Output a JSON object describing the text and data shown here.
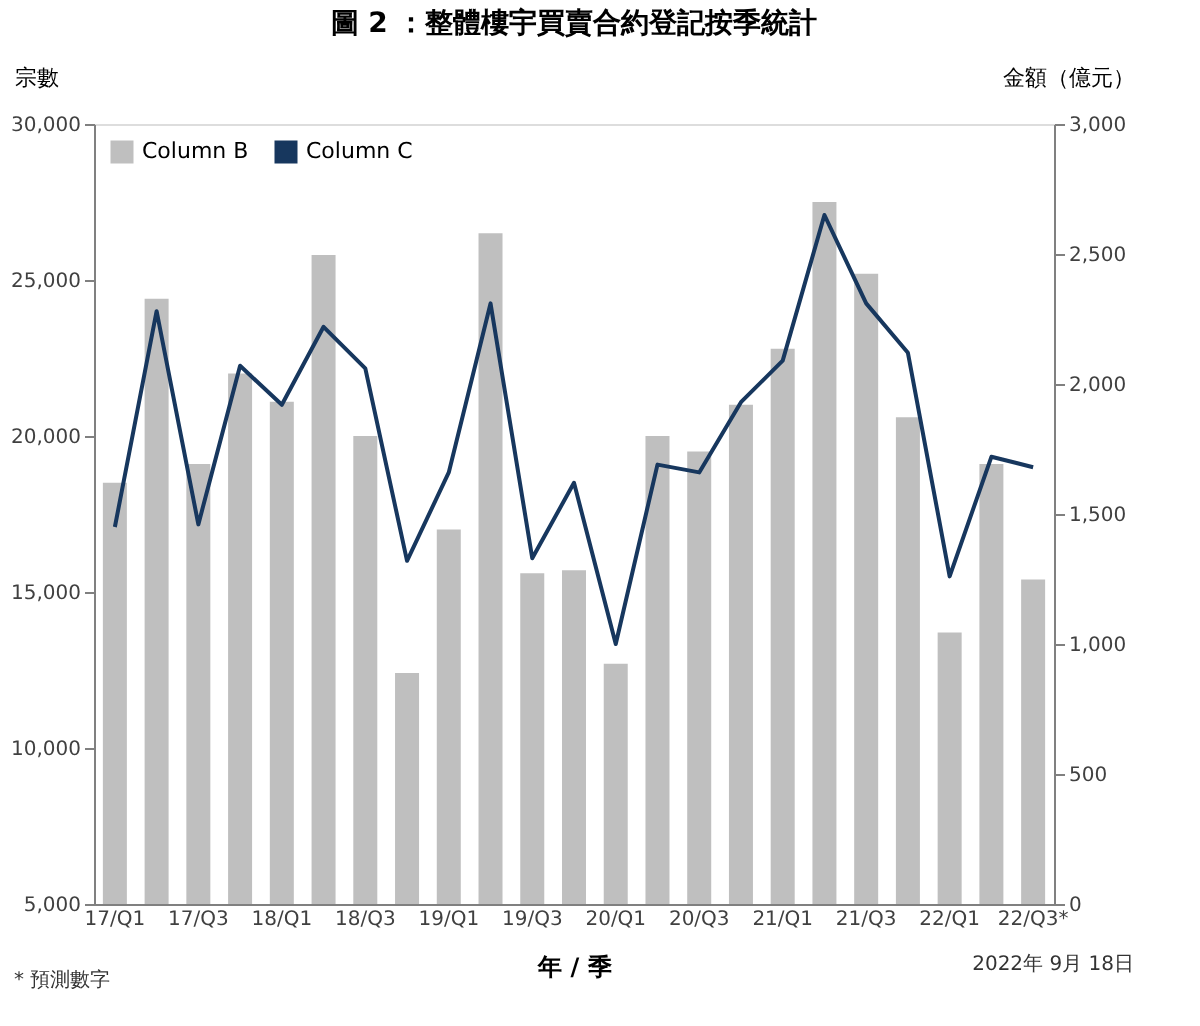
{
  "chart_data": {
    "type": "bar",
    "title": "圖 2 ：整體樓宇買賣合約登記按季統計",
    "xlabel": "年 / 季",
    "ylabel": "宗數",
    "y2label": "金額（億元）",
    "categories": [
      "17/Q1",
      null,
      "17/Q3",
      null,
      "18/Q1",
      null,
      "18/Q3",
      null,
      "19/Q1",
      null,
      "19/Q3",
      null,
      "20/Q1",
      null,
      "20/Q3",
      null,
      "21/Q1",
      null,
      "21/Q3",
      null,
      "22/Q1",
      null,
      "22/Q3*"
    ],
    "series": [
      {
        "name": "Column B",
        "color": "#bfbfbf",
        "values": [
          18500,
          24400,
          19100,
          22000,
          21100,
          25800,
          20000,
          12400,
          17000,
          26500,
          15600,
          15700,
          12700,
          20000,
          19500,
          21000,
          22800,
          27500,
          25200,
          20600,
          13700,
          19100,
          15400
        ]
      },
      {
        "name": "Column C",
        "type": "line",
        "axis": "y2",
        "color": "#17375e",
        "values": [
          1450,
          2280,
          1460,
          2070,
          1920,
          2220,
          2060,
          1320,
          1660,
          2310,
          1330,
          1620,
          1000,
          1690,
          1660,
          1930,
          2090,
          2650,
          2310,
          2120,
          1260,
          1720,
          1680
        ]
      }
    ],
    "ylim": [
      5000,
      30000
    ],
    "yticks": [
      {
        "value": 5000,
        "label": "5,000"
      },
      {
        "value": 10000,
        "label": "10,000"
      },
      {
        "value": 15000,
        "label": "15,000"
      },
      {
        "value": 20000,
        "label": "20,000"
      },
      {
        "value": 25000,
        "label": "25,000"
      },
      {
        "value": 30000,
        "label": "30,000"
      }
    ],
    "y2lim": [
      0,
      3000
    ],
    "y2ticks": [
      0,
      500,
      {
        "value": 1000,
        "label": "1,000"
      },
      {
        "value": 1500,
        "label": "1,500"
      },
      {
        "value": 2000,
        "label": "2,000"
      },
      {
        "value": 2500,
        "label": "2,500"
      },
      {
        "value": 3000,
        "label": "3,000"
      }
    ],
    "grid": false,
    "legend": "top left",
    "annotations": [
      "* 預測數字",
      "2022年 9月 18日"
    ]
  }
}
